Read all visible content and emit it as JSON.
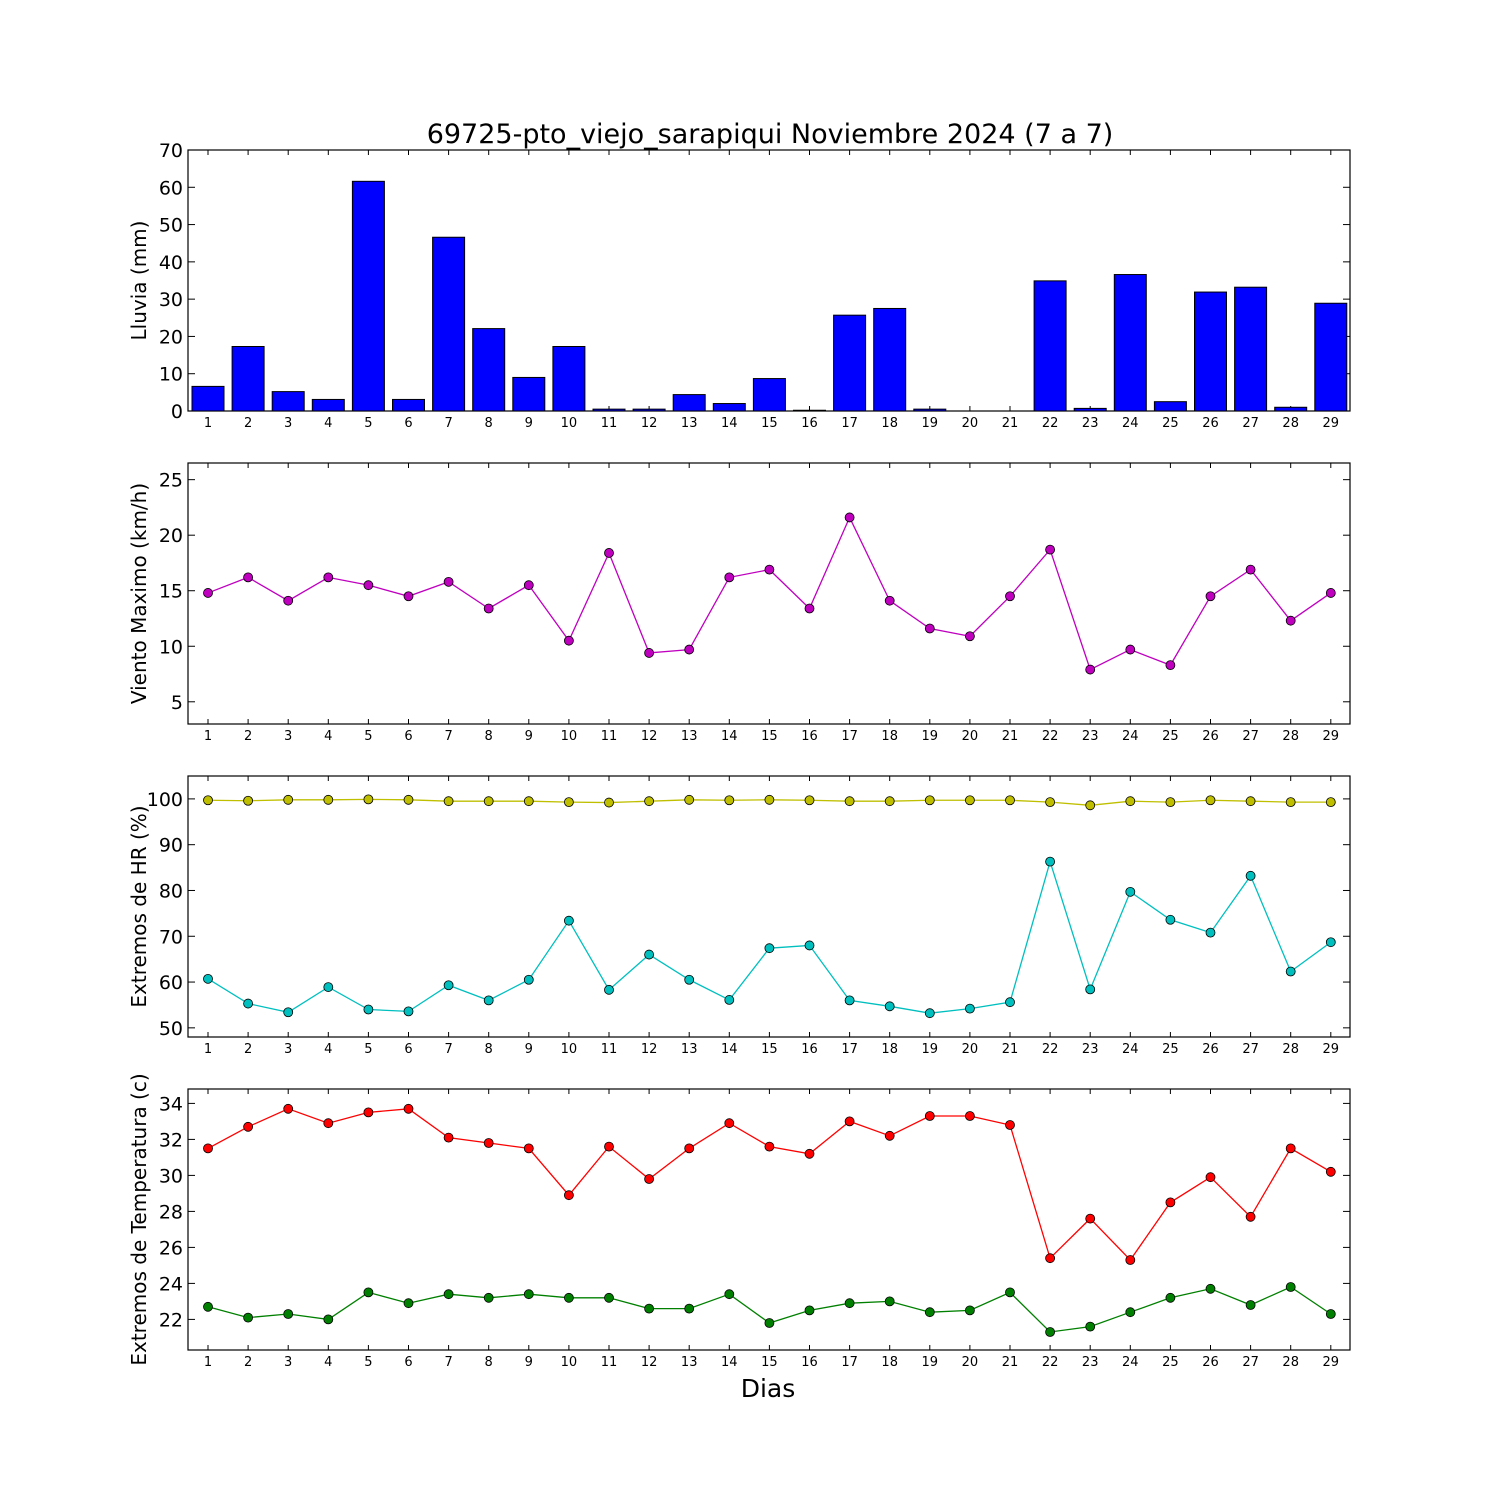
{
  "title": "69725-pto_viejo_sarapiqui Noviembre 2024  (7 a 7)",
  "xlabel": "Dias",
  "colors": {
    "lluvia": "#0000ff",
    "viento": "#bf00bf",
    "hr_max": "#bfbf00",
    "hr_min": "#00bfbf",
    "temp_max": "#ff0000",
    "temp_min": "#008000"
  },
  "chart_data": [
    {
      "type": "bar",
      "ylabel": "Lluvia (mm)",
      "ylim": [
        0,
        70
      ],
      "yticks": [
        0,
        10,
        20,
        30,
        40,
        50,
        60,
        70
      ],
      "categories": [
        1,
        2,
        3,
        4,
        5,
        6,
        7,
        8,
        9,
        10,
        11,
        12,
        13,
        14,
        15,
        16,
        17,
        18,
        19,
        20,
        21,
        22,
        23,
        24,
        25,
        26,
        27,
        28,
        29
      ],
      "series": [
        {
          "color_key": "lluvia",
          "values": [
            6.6,
            17.3,
            5.2,
            3.1,
            61.6,
            3.1,
            46.6,
            22.1,
            9.0,
            17.3,
            0.5,
            0.5,
            4.4,
            2.0,
            8.7,
            0.2,
            25.7,
            27.5,
            0.5,
            0.0,
            0.0,
            34.9,
            0.7,
            36.6,
            2.5,
            31.9,
            33.2,
            1.0,
            28.9
          ]
        }
      ]
    },
    {
      "type": "line",
      "ylabel": "Viento Maximo (km/h)",
      "ylim": [
        3,
        26.5
      ],
      "yticks": [
        5,
        10,
        15,
        20,
        25
      ],
      "categories": [
        1,
        2,
        3,
        4,
        5,
        6,
        7,
        8,
        9,
        10,
        11,
        12,
        13,
        14,
        15,
        16,
        17,
        18,
        19,
        20,
        21,
        22,
        23,
        24,
        25,
        26,
        27,
        28,
        29
      ],
      "series": [
        {
          "color_key": "viento",
          "values": [
            14.8,
            16.2,
            14.1,
            16.2,
            15.5,
            14.5,
            15.8,
            13.4,
            15.5,
            10.5,
            18.4,
            9.4,
            9.7,
            16.2,
            16.9,
            13.4,
            21.6,
            14.1,
            11.6,
            10.9,
            14.5,
            18.7,
            7.9,
            9.7,
            8.3,
            14.5,
            16.9,
            12.3,
            14.8
          ]
        }
      ]
    },
    {
      "type": "line",
      "ylabel": "Extremos de HR (%)",
      "ylim": [
        48,
        105
      ],
      "yticks": [
        50,
        60,
        70,
        80,
        90,
        100
      ],
      "categories": [
        1,
        2,
        3,
        4,
        5,
        6,
        7,
        8,
        9,
        10,
        11,
        12,
        13,
        14,
        15,
        16,
        17,
        18,
        19,
        20,
        21,
        22,
        23,
        24,
        25,
        26,
        27,
        28,
        29
      ],
      "series": [
        {
          "color_key": "hr_max",
          "values": [
            99.7,
            99.6,
            99.8,
            99.8,
            99.9,
            99.8,
            99.5,
            99.5,
            99.5,
            99.3,
            99.2,
            99.5,
            99.8,
            99.7,
            99.8,
            99.7,
            99.5,
            99.5,
            99.7,
            99.7,
            99.7,
            99.3,
            98.6,
            99.5,
            99.3,
            99.7,
            99.5,
            99.3,
            99.3
          ]
        },
        {
          "color_key": "hr_min",
          "values": [
            60.7,
            55.3,
            53.4,
            58.9,
            54.0,
            53.6,
            59.3,
            56.0,
            60.5,
            73.4,
            58.3,
            66.0,
            60.5,
            56.1,
            67.4,
            68.0,
            56.0,
            54.7,
            53.2,
            54.2,
            55.6,
            86.3,
            58.4,
            79.7,
            73.6,
            70.8,
            83.2,
            62.3,
            68.7
          ]
        }
      ]
    },
    {
      "type": "line",
      "ylabel": "Extremos de Temperatura (c)",
      "ylim": [
        20.3,
        34.8
      ],
      "yticks": [
        22,
        24,
        26,
        28,
        30,
        32,
        34
      ],
      "categories": [
        1,
        2,
        3,
        4,
        5,
        6,
        7,
        8,
        9,
        10,
        11,
        12,
        13,
        14,
        15,
        16,
        17,
        18,
        19,
        20,
        21,
        22,
        23,
        24,
        25,
        26,
        27,
        28,
        29
      ],
      "series": [
        {
          "color_key": "temp_max",
          "values": [
            31.5,
            32.7,
            33.7,
            32.9,
            33.5,
            33.7,
            32.1,
            31.8,
            31.5,
            28.9,
            31.6,
            29.8,
            31.5,
            32.9,
            31.6,
            31.2,
            33.0,
            32.2,
            33.3,
            33.3,
            32.8,
            25.4,
            27.6,
            25.3,
            28.5,
            29.9,
            27.7,
            31.5,
            30.2
          ]
        },
        {
          "color_key": "temp_min",
          "values": [
            22.7,
            22.1,
            22.3,
            22.0,
            23.5,
            22.9,
            23.4,
            23.2,
            23.4,
            23.2,
            23.2,
            22.6,
            22.6,
            23.4,
            21.8,
            22.5,
            22.9,
            23.0,
            22.4,
            22.5,
            23.5,
            21.3,
            21.6,
            22.4,
            23.2,
            23.7,
            22.8,
            23.8,
            22.3
          ]
        }
      ]
    }
  ]
}
